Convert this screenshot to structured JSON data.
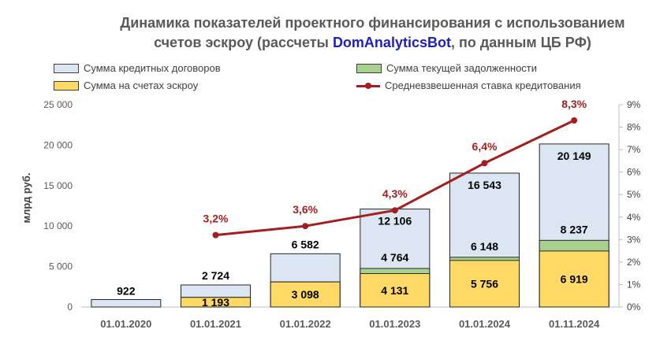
{
  "chart_data": {
    "type": "bar",
    "title_line1": "Динамика показателей проектного финансирования с использованием",
    "title_line2_prefix": "счетов  эскроу (рассчеты ",
    "title_line2_brand": "DomAnalyticsBot",
    "title_line2_suffix": ", по данным ЦБ РФ)",
    "ylabel": "млрд руб.",
    "ylim": [
      0,
      25000
    ],
    "y_ticks": [
      "0",
      "5 000",
      "10 000",
      "15 000",
      "20 000",
      "25 000"
    ],
    "y2lim": [
      0,
      9
    ],
    "y2_ticks": [
      "0%",
      "1%",
      "2%",
      "3%",
      "4%",
      "5%",
      "6%",
      "7%",
      "8%",
      "9%"
    ],
    "categories": [
      "01.01.2020",
      "01.01.2021",
      "01.01.2022",
      "01.01.2023",
      "01.01.2024",
      "01.11.2024"
    ],
    "series": [
      {
        "name": "Сумма кредитных договоров",
        "values": [
          922,
          2724,
          6582,
          12106,
          16543,
          20149
        ],
        "labels": [
          "922",
          "2 724",
          "6 582",
          "12 106",
          "16 543",
          "20 149"
        ],
        "color": "#dce6f2"
      },
      {
        "name": "Сумма текущей задолженности",
        "values": [
          null,
          1193,
          3098,
          4764,
          6148,
          8237
        ],
        "labels": [
          "",
          "",
          "",
          "4 764",
          "6 148",
          "8 237"
        ],
        "color": "#a9d18e"
      },
      {
        "name": "Сумма на счетах эскроу",
        "values": [
          null,
          1193,
          3098,
          4131,
          5756,
          6919
        ],
        "labels": [
          "",
          "1 193",
          "3 098",
          "4 131",
          "5 756",
          "6 919"
        ],
        "color": "#ffd966"
      },
      {
        "name": "Средневзвешенная ставка кредитования",
        "type": "line",
        "axis": "secondary",
        "values": [
          null,
          3.2,
          3.6,
          4.3,
          6.4,
          8.3
        ],
        "labels": [
          "",
          "3,2%",
          "3,6%",
          "4,3%",
          "6,4%",
          "8,3%"
        ],
        "color": "#a31f1f"
      }
    ],
    "legend_position": "top",
    "grid": false
  }
}
